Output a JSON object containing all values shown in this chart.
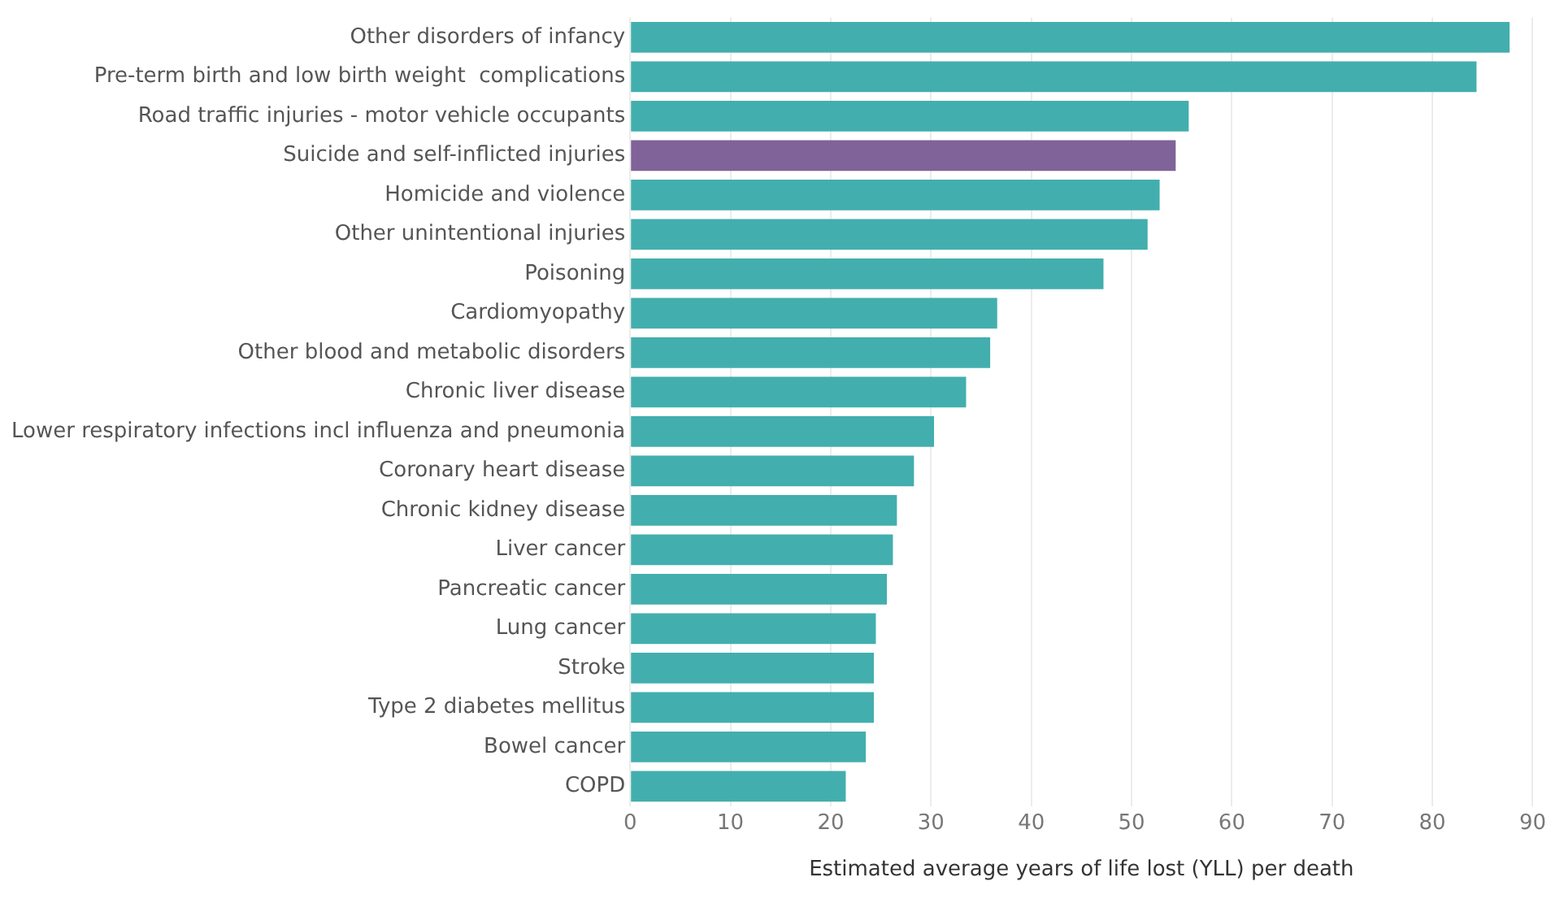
{
  "chart_data": {
    "type": "bar",
    "orientation": "horizontal",
    "xlabel": "Estimated average years of life lost (YLL) per death",
    "categories": [
      "Other disorders of infancy",
      "Pre-term birth and low birth weight  complications",
      "Road traffic injuries - motor vehicle occupants",
      "Suicide and self-inflicted injuries",
      "Homicide and violence",
      "Other unintentional injuries",
      "Poisoning",
      "Cardiomyopathy",
      "Other blood and metabolic disorders",
      "Chronic liver disease",
      "Lower respiratory infections incl influenza and pneumonia",
      "Coronary heart disease",
      "Chronic kidney disease",
      "Liver cancer",
      "Pancreatic cancer",
      "Lung cancer",
      "Stroke",
      "Type 2 diabetes mellitus",
      "Bowel cancer",
      "COPD"
    ],
    "values": [
      87.7,
      84.4,
      55.7,
      54.4,
      52.8,
      51.6,
      47.2,
      36.6,
      35.9,
      33.5,
      30.3,
      28.3,
      26.6,
      26.2,
      25.6,
      24.5,
      24.3,
      24.3,
      23.5,
      21.5
    ],
    "colors": [
      "#43aeae",
      "#43aeae",
      "#43aeae",
      "#7f6399",
      "#43aeae",
      "#43aeae",
      "#43aeae",
      "#43aeae",
      "#43aeae",
      "#43aeae",
      "#43aeae",
      "#43aeae",
      "#43aeae",
      "#43aeae",
      "#43aeae",
      "#43aeae",
      "#43aeae",
      "#43aeae",
      "#43aeae",
      "#43aeae"
    ],
    "xlim": [
      0,
      90
    ],
    "xticks": [
      0,
      10,
      20,
      30,
      40,
      50,
      60,
      70,
      80,
      90
    ],
    "grid": "x",
    "legend": false
  }
}
